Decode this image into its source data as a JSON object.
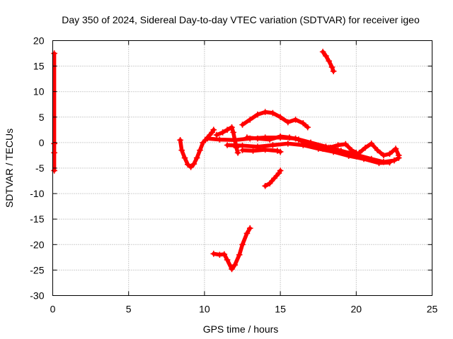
{
  "chart_data": {
    "type": "scatter",
    "title": "Day 350 of 2024, Sidereal Day-to-day VTEC variation (SDTVAR) for receiver igeo",
    "xlabel": "GPS time / hours",
    "ylabel": "SDTVAR / TECUs",
    "xlim": [
      0,
      25
    ],
    "ylim": [
      -30,
      20
    ],
    "xticks": [
      0,
      5,
      10,
      15,
      20,
      25
    ],
    "yticks": [
      -30,
      -25,
      -20,
      -15,
      -10,
      -5,
      0,
      5,
      10,
      15,
      20
    ],
    "xtick_labels": [
      "0",
      "5",
      "10",
      "15",
      "20",
      "25"
    ],
    "ytick_labels": [
      "-30",
      "-25",
      "-20",
      "-15",
      "-10",
      "-5",
      "0",
      "5",
      "10",
      "15",
      "20"
    ],
    "grid": true,
    "legend": "none",
    "marker": "plus",
    "color": "#ff0000",
    "series": [
      {
        "name": "isolated-points",
        "points": [
          [
            0.1,
            17.5
          ],
          [
            0.1,
            -0.2
          ],
          [
            0.1,
            -2.0
          ],
          [
            0.1,
            -5.5
          ]
        ]
      },
      {
        "name": "arc-upper-right",
        "points": [
          [
            17.8,
            17.8
          ],
          [
            18.0,
            17.0
          ],
          [
            18.2,
            16.0
          ],
          [
            18.4,
            14.8
          ],
          [
            18.5,
            14.0
          ]
        ]
      },
      {
        "name": "arc-bottom",
        "points": [
          [
            10.6,
            -21.8
          ],
          [
            11.0,
            -22.0
          ],
          [
            11.3,
            -21.9
          ],
          [
            11.5,
            -23.0
          ],
          [
            11.8,
            -24.8
          ],
          [
            12.0,
            -24.0
          ],
          [
            12.3,
            -22.0
          ],
          [
            12.5,
            -20.0
          ],
          [
            12.8,
            -17.8
          ],
          [
            13.0,
            -16.8
          ]
        ]
      },
      {
        "name": "arc-mid-drop",
        "points": [
          [
            14.0,
            -8.5
          ],
          [
            14.3,
            -8.0
          ],
          [
            14.6,
            -7.0
          ],
          [
            14.9,
            -6.0
          ],
          [
            15.0,
            -5.5
          ]
        ]
      },
      {
        "name": "arc-dip",
        "points": [
          [
            8.4,
            0.5
          ],
          [
            8.5,
            -1.5
          ],
          [
            8.7,
            -3.0
          ],
          [
            8.9,
            -4.3
          ],
          [
            9.1,
            -4.8
          ],
          [
            9.3,
            -4.2
          ],
          [
            9.5,
            -3.0
          ],
          [
            9.7,
            -1.5
          ],
          [
            9.9,
            0.0
          ],
          [
            10.2,
            1.0
          ],
          [
            10.5,
            2.0
          ],
          [
            10.6,
            2.5
          ]
        ]
      },
      {
        "name": "arc-crest",
        "points": [
          [
            10.8,
            1.5
          ],
          [
            11.2,
            2.0
          ],
          [
            11.5,
            2.5
          ],
          [
            11.8,
            3.0
          ],
          [
            11.9,
            2.0
          ],
          [
            12.0,
            0.5
          ],
          [
            12.1,
            -1.0
          ],
          [
            12.2,
            -2.0
          ]
        ]
      },
      {
        "name": "arc-hump",
        "points": [
          [
            12.5,
            3.5
          ],
          [
            13.0,
            4.5
          ],
          [
            13.5,
            5.5
          ],
          [
            14.0,
            6.0
          ],
          [
            14.5,
            5.8
          ],
          [
            15.0,
            5.0
          ],
          [
            15.5,
            4.0
          ],
          [
            16.0,
            4.5
          ],
          [
            16.5,
            3.8
          ],
          [
            16.8,
            3.0
          ]
        ]
      },
      {
        "name": "arc-long-a",
        "points": [
          [
            10.2,
            0.8
          ],
          [
            11.0,
            0.6
          ],
          [
            12.0,
            0.5
          ],
          [
            13.0,
            0.8
          ],
          [
            14.0,
            1.0
          ],
          [
            15.0,
            1.0
          ],
          [
            16.0,
            0.8
          ],
          [
            17.0,
            0.0
          ],
          [
            18.0,
            -0.8
          ],
          [
            19.0,
            -1.6
          ],
          [
            20.0,
            -2.4
          ],
          [
            21.0,
            -3.2
          ],
          [
            21.8,
            -3.8
          ],
          [
            22.5,
            -3.5
          ],
          [
            22.8,
            -3.0
          ]
        ]
      },
      {
        "name": "arc-long-b",
        "points": [
          [
            11.5,
            -0.5
          ],
          [
            12.5,
            -0.6
          ],
          [
            13.5,
            -0.8
          ],
          [
            14.5,
            -0.5
          ],
          [
            15.5,
            -0.2
          ],
          [
            16.5,
            -0.5
          ],
          [
            17.5,
            -1.2
          ],
          [
            18.5,
            -1.8
          ],
          [
            19.5,
            -2.6
          ],
          [
            20.5,
            -3.2
          ],
          [
            21.5,
            -4.0
          ],
          [
            22.2,
            -3.9
          ]
        ]
      },
      {
        "name": "arc-lower-left",
        "points": [
          [
            12.5,
            -1.5
          ],
          [
            13.2,
            -1.6
          ],
          [
            14.0,
            -1.4
          ],
          [
            14.8,
            -1.6
          ],
          [
            15.0,
            -1.8
          ]
        ]
      },
      {
        "name": "arc-upper-mid",
        "points": [
          [
            12.8,
            1.0
          ],
          [
            13.5,
            0.8
          ],
          [
            14.3,
            0.6
          ],
          [
            15.0,
            1.2
          ],
          [
            15.6,
            1.0
          ],
          [
            16.2,
            0.6
          ],
          [
            17.0,
            -0.6
          ],
          [
            17.8,
            -1.2
          ],
          [
            18.3,
            -1.0
          ]
        ]
      },
      {
        "name": "arc-right-tail",
        "points": [
          [
            18.2,
            -1.0
          ],
          [
            18.8,
            -0.5
          ],
          [
            19.3,
            -0.3
          ],
          [
            19.7,
            -1.5
          ],
          [
            20.0,
            -2.0
          ]
        ]
      },
      {
        "name": "arc-right-end",
        "points": [
          [
            20.2,
            -2.0
          ],
          [
            20.6,
            -1.0
          ],
          [
            21.0,
            -0.2
          ],
          [
            21.4,
            -1.5
          ],
          [
            21.8,
            -2.5
          ],
          [
            22.2,
            -2.2
          ],
          [
            22.6,
            -1.2
          ],
          [
            22.8,
            -2.5
          ]
        ]
      }
    ]
  }
}
